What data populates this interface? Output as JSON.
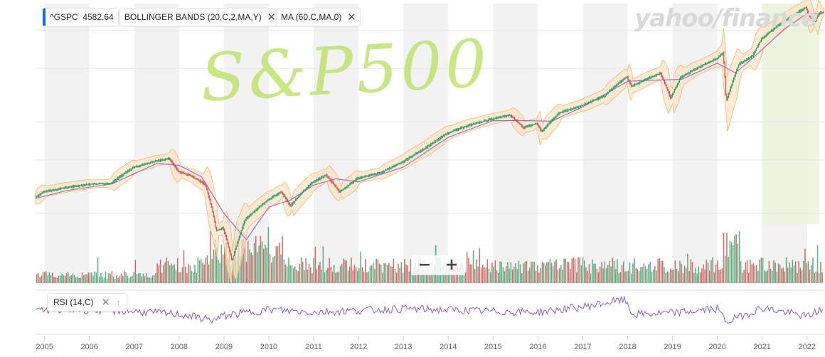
{
  "toolbar": {
    "symbol": "^GSPC",
    "last_price": "4582.64",
    "indicator_bb": "BOLLINGER BANDS (20,C,2,MA,Y)",
    "indicator_ma": "MA (60,C,MA,0)",
    "close_glyph": "✕"
  },
  "watermark": "yahoo/finance",
  "annotation": "S&P500",
  "rsi": {
    "label": "RSI (14,C)",
    "close_glyph": "✕",
    "up_glyph": "↑"
  },
  "zoom": {
    "minus": "−",
    "plus": "+"
  },
  "colors": {
    "up": "#2e9e5b",
    "down": "#d64b4b",
    "band_fill": "#fce3c4",
    "band_line": "#f5b85f",
    "ma_line": "#a36fd6",
    "rsi_line": "#8a5cc9",
    "highlight": "#eaf3d9",
    "stripe": "#f2f2f2"
  },
  "chart_data": {
    "type": "line",
    "title": "",
    "x_tick_labels": [
      "2005",
      "2006",
      "2007",
      "2008",
      "2009",
      "2010",
      "2011",
      "2012",
      "2013",
      "2014",
      "2015",
      "2016",
      "2017",
      "2018",
      "2019",
      "2020",
      "2021",
      "2022"
    ],
    "xlim": [
      2004.8,
      2022.4
    ],
    "ylim": [
      600,
      4900
    ],
    "series": [
      {
        "name": "^GSPC",
        "x": [
          2004.8,
          2005.0,
          2005.5,
          2006.0,
          2006.5,
          2007.0,
          2007.5,
          2007.8,
          2008.0,
          2008.3,
          2008.6,
          2008.75,
          2008.85,
          2009.0,
          2009.2,
          2009.5,
          2010.0,
          2010.3,
          2010.5,
          2010.8,
          2011.0,
          2011.3,
          2011.6,
          2011.8,
          2012.0,
          2012.5,
          2013.0,
          2013.5,
          2014.0,
          2014.5,
          2015.0,
          2015.4,
          2015.7,
          2016.0,
          2016.1,
          2016.5,
          2017.0,
          2017.5,
          2018.0,
          2018.1,
          2018.5,
          2018.75,
          2018.98,
          2019.2,
          2019.5,
          2020.0,
          2020.15,
          2020.22,
          2020.5,
          2020.8,
          2021.0,
          2021.5,
          2021.99,
          2022.1,
          2022.2,
          2022.3
        ],
        "values": [
          1130,
          1180,
          1220,
          1250,
          1260,
          1420,
          1490,
          1520,
          1380,
          1330,
          1250,
          1050,
          880,
          900,
          700,
          960,
          1110,
          1180,
          1060,
          1190,
          1270,
          1340,
          1180,
          1240,
          1310,
          1360,
          1480,
          1640,
          1840,
          1960,
          2050,
          2110,
          1920,
          1980,
          1860,
          2150,
          2270,
          2440,
          2830,
          2620,
          2800,
          2900,
          2400,
          2800,
          2980,
          3230,
          3380,
          2330,
          3100,
          3300,
          3750,
          4300,
          4766,
          4400,
          4300,
          4582
        ]
      },
      {
        "name": "MA (60,C,MA,0)",
        "x": [
          2004.8,
          2005.5,
          2006.5,
          2007.5,
          2008.0,
          2008.5,
          2009.0,
          2009.5,
          2010.0,
          2010.5,
          2011.0,
          2011.5,
          2012.0,
          2013.0,
          2014.0,
          2015.0,
          2015.8,
          2016.3,
          2017.0,
          2018.0,
          2018.5,
          2019.2,
          2020.0,
          2020.4,
          2020.8,
          2021.5,
          2022.0,
          2022.3
        ],
        "values": [
          1120,
          1190,
          1250,
          1460,
          1440,
          1320,
          1000,
          820,
          1050,
          1110,
          1240,
          1300,
          1270,
          1420,
          1780,
          2020,
          2020,
          2010,
          2240,
          2720,
          2740,
          2760,
          3120,
          2900,
          3250,
          4050,
          4550,
          4520
        ]
      }
    ],
    "rsi": {
      "name": "RSI (14,C)",
      "x": [
        2004.8,
        2006.0,
        2007.0,
        2008.0,
        2008.8,
        2009.0,
        2010.0,
        2011.0,
        2012.0,
        2013.0,
        2014.0,
        2015.0,
        2016.0,
        2017.0,
        2017.9,
        2018.0,
        2018.1,
        2019.0,
        2020.0,
        2020.2,
        2021.0,
        2022.0,
        2022.3
      ],
      "values": [
        55,
        55,
        52,
        45,
        32,
        42,
        56,
        50,
        54,
        58,
        55,
        52,
        50,
        62,
        78,
        70,
        45,
        48,
        58,
        28,
        60,
        40,
        55
      ]
    }
  }
}
